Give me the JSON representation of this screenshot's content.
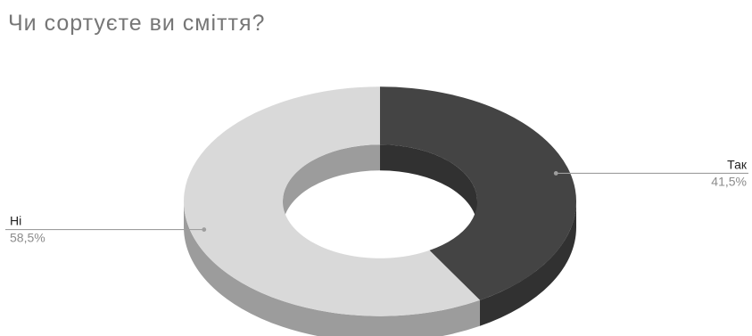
{
  "chart_data": {
    "type": "pie",
    "variant": "3d-donut",
    "title": "Чи сортуєте ви сміття?",
    "slices": [
      {
        "label": "Так",
        "value": 41.5,
        "value_label": "41,5%",
        "color": "#444444"
      },
      {
        "label": "Ні",
        "value": 58.5,
        "value_label": "58,5%",
        "color": "#d9d9d9"
      }
    ],
    "label_color": "#222222",
    "value_label_color": "#8c8c8c",
    "leader_color": "#9e9e9e"
  }
}
